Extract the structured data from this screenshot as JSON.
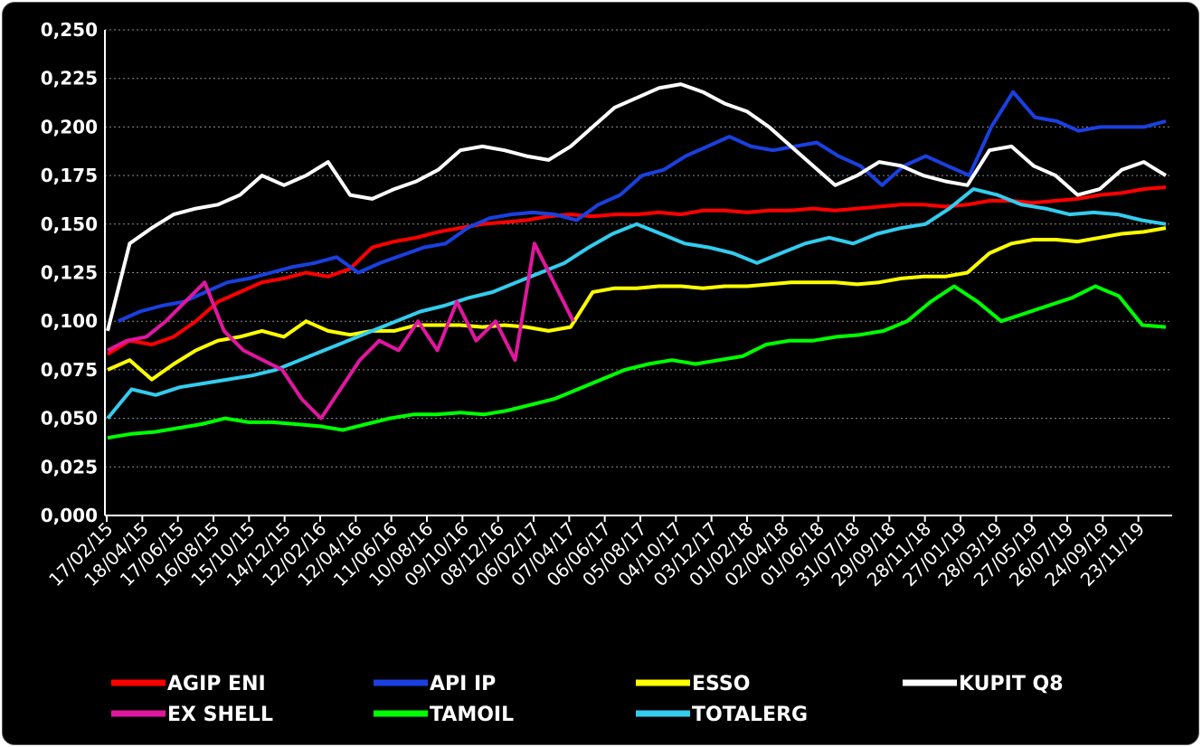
{
  "chart_data": {
    "type": "line",
    "title": "",
    "xlabel": "",
    "ylabel": "",
    "ylim": [
      0,
      0.25
    ],
    "y_ticks": [
      "0,000",
      "0,025",
      "0,050",
      "0,075",
      "0,100",
      "0,125",
      "0,150",
      "0,175",
      "0,200",
      "0,225",
      "0,250"
    ],
    "x_ticks": [
      "17/02/15",
      "18/04/15",
      "17/06/15",
      "16/08/15",
      "15/10/15",
      "14/12/15",
      "12/02/16",
      "12/04/16",
      "11/06/16",
      "10/08/16",
      "09/10/16",
      "08/12/16",
      "06/02/17",
      "07/04/17",
      "06/06/17",
      "05/08/17",
      "04/10/17",
      "03/12/17",
      "01/02/18",
      "02/04/18",
      "01/06/18",
      "31/07/18",
      "29/09/18",
      "28/11/18",
      "27/01/19",
      "28/03/19",
      "27/05/19",
      "26/07/19",
      "24/09/19",
      "23/11/19"
    ],
    "grid": true,
    "legend_position": "bottom",
    "series": [
      {
        "name": "AGIP ENI",
        "color": "#ff0000",
        "values": [
          0.083,
          0.09,
          0.088,
          0.092,
          0.1,
          0.11,
          0.115,
          0.12,
          0.122,
          0.125,
          0.123,
          0.127,
          0.138,
          0.141,
          0.143,
          0.146,
          0.148,
          0.15,
          0.151,
          0.152,
          0.154,
          0.155,
          0.154,
          0.155,
          0.155,
          0.156,
          0.155,
          0.157,
          0.157,
          0.156,
          0.157,
          0.157,
          0.158,
          0.157,
          0.158,
          0.159,
          0.16,
          0.16,
          0.159,
          0.16,
          0.162,
          0.162,
          0.161,
          0.162,
          0.163,
          0.165,
          0.166,
          0.168,
          0.169
        ]
      },
      {
        "name": "API IP",
        "color": "#1a40e0",
        "values": [
          0.1,
          0.105,
          0.108,
          0.11,
          0.115,
          0.12,
          0.122,
          0.125,
          0.128,
          0.13,
          0.133,
          0.125,
          0.13,
          0.134,
          0.138,
          0.14,
          0.148,
          0.153,
          0.155,
          0.156,
          0.155,
          0.152,
          0.16,
          0.165,
          0.175,
          0.178,
          0.185,
          0.19,
          0.195,
          0.19,
          0.188,
          0.19,
          0.192,
          0.185,
          0.18,
          0.17,
          0.18,
          0.185,
          0.18,
          0.175,
          0.2,
          0.218,
          0.205,
          0.203,
          0.198,
          0.2,
          0.2,
          0.2,
          0.203
        ]
      },
      {
        "name": "ESSO",
        "color": "#ffff00",
        "values": [
          0.075,
          0.08,
          0.07,
          0.078,
          0.085,
          0.09,
          0.092,
          0.095,
          0.092,
          0.1,
          0.095,
          0.093,
          0.095,
          0.095,
          0.098,
          0.098,
          0.098,
          0.097,
          0.098,
          0.097,
          0.095,
          0.097,
          0.115,
          0.117,
          0.117,
          0.118,
          0.118,
          0.117,
          0.118,
          0.118,
          0.119,
          0.12,
          0.12,
          0.12,
          0.119,
          0.12,
          0.122,
          0.123,
          0.123,
          0.125,
          0.135,
          0.14,
          0.142,
          0.142,
          0.141,
          0.143,
          0.145,
          0.146,
          0.148
        ]
      },
      {
        "name": "KUPIT Q8",
        "color": "#ffffff",
        "values": [
          0.095,
          0.14,
          0.148,
          0.155,
          0.158,
          0.16,
          0.165,
          0.175,
          0.17,
          0.175,
          0.182,
          0.165,
          0.163,
          0.168,
          0.172,
          0.178,
          0.188,
          0.19,
          0.188,
          0.185,
          0.183,
          0.19,
          0.2,
          0.21,
          0.215,
          0.22,
          0.222,
          0.218,
          0.212,
          0.208,
          0.2,
          0.19,
          0.18,
          0.17,
          0.175,
          0.182,
          0.18,
          0.175,
          0.172,
          0.17,
          0.188,
          0.19,
          0.18,
          0.175,
          0.165,
          0.168,
          0.178,
          0.182,
          0.175
        ]
      },
      {
        "name": "EX SHELL",
        "color": "#e0179e",
        "values": [
          0.085,
          0.09,
          0.092,
          0.1,
          0.11,
          0.12,
          0.095,
          0.085,
          0.08,
          0.075,
          0.06,
          0.05,
          0.065,
          0.08,
          0.09,
          0.085,
          0.1,
          0.085,
          0.11,
          0.09,
          0.1,
          0.08,
          0.14,
          0.12,
          0.1
        ]
      },
      {
        "name": "TAMOIL",
        "color": "#00ff00",
        "values": [
          0.04,
          0.042,
          0.043,
          0.045,
          0.047,
          0.05,
          0.048,
          0.048,
          0.047,
          0.046,
          0.044,
          0.047,
          0.05,
          0.052,
          0.052,
          0.053,
          0.052,
          0.054,
          0.057,
          0.06,
          0.065,
          0.07,
          0.075,
          0.078,
          0.08,
          0.078,
          0.08,
          0.082,
          0.088,
          0.09,
          0.09,
          0.092,
          0.093,
          0.095,
          0.1,
          0.11,
          0.118,
          0.11,
          0.1,
          0.104,
          0.108,
          0.112,
          0.118,
          0.113,
          0.098,
          0.097
        ]
      },
      {
        "name": "TOTALERG",
        "color": "#33ccee",
        "values": [
          0.05,
          0.065,
          0.062,
          0.066,
          0.068,
          0.07,
          0.072,
          0.075,
          0.08,
          0.085,
          0.09,
          0.095,
          0.1,
          0.105,
          0.108,
          0.112,
          0.115,
          0.12,
          0.125,
          0.13,
          0.138,
          0.145,
          0.15,
          0.145,
          0.14,
          0.138,
          0.135,
          0.13,
          0.135,
          0.14,
          0.143,
          0.14,
          0.145,
          0.148,
          0.15,
          0.158,
          0.168,
          0.165,
          0.16,
          0.158,
          0.155,
          0.156,
          0.155,
          0.152,
          0.15
        ]
      }
    ]
  }
}
